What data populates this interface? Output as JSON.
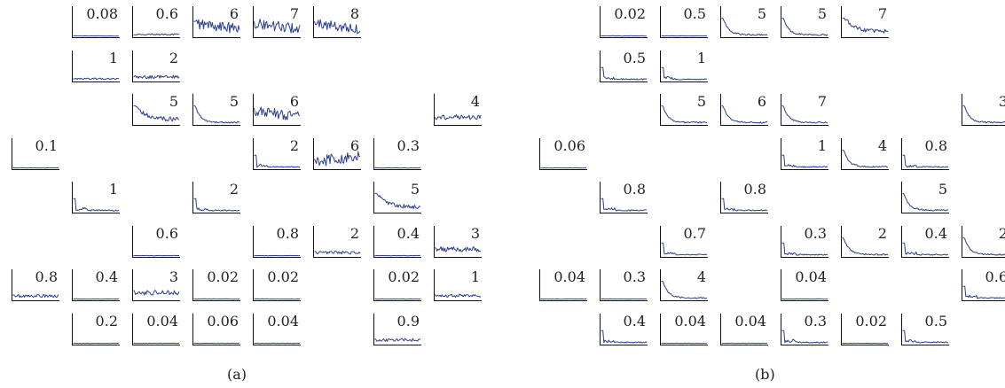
{
  "figure": {
    "caption_a": "(a)",
    "caption_b": "(b)",
    "line_color": "#2b3f8f"
  },
  "chart_data": [
    {
      "type": "line",
      "panel": "a",
      "caption": "(a)",
      "grid": "8 rows x 8 columns of small signal-profile plots, each labeled with a value",
      "cells": [
        {
          "row": 0,
          "col": 1,
          "label": "0.08",
          "shape": "flat"
        },
        {
          "row": 0,
          "col": 2,
          "label": "0.6",
          "shape": "low"
        },
        {
          "row": 0,
          "col": 3,
          "label": "6",
          "shape": "noisy-high"
        },
        {
          "row": 0,
          "col": 4,
          "label": "7",
          "shape": "noisy-high"
        },
        {
          "row": 0,
          "col": 5,
          "label": "8",
          "shape": "noisy-high"
        },
        {
          "row": 1,
          "col": 1,
          "label": "1",
          "shape": "low"
        },
        {
          "row": 1,
          "col": 2,
          "label": "2",
          "shape": "noisy-low"
        },
        {
          "row": 2,
          "col": 2,
          "label": "5",
          "shape": "decay-noisy"
        },
        {
          "row": 2,
          "col": 3,
          "label": "5",
          "shape": "decay"
        },
        {
          "row": 2,
          "col": 4,
          "label": "6",
          "shape": "noisy-high"
        },
        {
          "row": 2,
          "col": 7,
          "label": "4",
          "shape": "noisy-mid"
        },
        {
          "row": 3,
          "col": 0,
          "label": "0.1",
          "shape": "flat"
        },
        {
          "row": 3,
          "col": 4,
          "label": "2",
          "shape": "spike-low"
        },
        {
          "row": 3,
          "col": 5,
          "label": "6",
          "shape": "noisy-rising"
        },
        {
          "row": 3,
          "col": 6,
          "label": "0.3",
          "shape": "flat"
        },
        {
          "row": 4,
          "col": 1,
          "label": "1",
          "shape": "spike-low"
        },
        {
          "row": 4,
          "col": 3,
          "label": "2",
          "shape": "spike-low"
        },
        {
          "row": 4,
          "col": 6,
          "label": "5",
          "shape": "decay-noisy"
        },
        {
          "row": 5,
          "col": 2,
          "label": "0.6",
          "shape": "flat"
        },
        {
          "row": 5,
          "col": 4,
          "label": "0.8",
          "shape": "flat"
        },
        {
          "row": 5,
          "col": 5,
          "label": "2",
          "shape": "noisy-low"
        },
        {
          "row": 5,
          "col": 6,
          "label": "0.4",
          "shape": "flat"
        },
        {
          "row": 5,
          "col": 7,
          "label": "3",
          "shape": "noisy-mid"
        },
        {
          "row": 6,
          "col": 0,
          "label": "0.8",
          "shape": "noisy-low"
        },
        {
          "row": 6,
          "col": 1,
          "label": "0.4",
          "shape": "flat"
        },
        {
          "row": 6,
          "col": 2,
          "label": "3",
          "shape": "noisy-mid"
        },
        {
          "row": 6,
          "col": 3,
          "label": "0.02",
          "shape": "flat"
        },
        {
          "row": 6,
          "col": 4,
          "label": "0.02",
          "shape": "flat"
        },
        {
          "row": 6,
          "col": 6,
          "label": "0.02",
          "shape": "flat"
        },
        {
          "row": 6,
          "col": 7,
          "label": "1",
          "shape": "noisy-low"
        },
        {
          "row": 7,
          "col": 1,
          "label": "0.2",
          "shape": "flat"
        },
        {
          "row": 7,
          "col": 2,
          "label": "0.04",
          "shape": "flat"
        },
        {
          "row": 7,
          "col": 3,
          "label": "0.06",
          "shape": "flat"
        },
        {
          "row": 7,
          "col": 4,
          "label": "0.04",
          "shape": "flat"
        },
        {
          "row": 7,
          "col": 6,
          "label": "0.9",
          "shape": "noisy-low"
        }
      ]
    },
    {
      "type": "line",
      "panel": "b",
      "caption": "(b)",
      "grid": "8 rows x 8 columns of small signal-profile plots, each labeled with a value",
      "cells": [
        {
          "row": 0,
          "col": 1,
          "label": "0.02",
          "shape": "flat"
        },
        {
          "row": 0,
          "col": 2,
          "label": "0.5",
          "shape": "flat"
        },
        {
          "row": 0,
          "col": 3,
          "label": "5",
          "shape": "decay"
        },
        {
          "row": 0,
          "col": 4,
          "label": "5",
          "shape": "decay"
        },
        {
          "row": 0,
          "col": 5,
          "label": "7",
          "shape": "decay-noisy"
        },
        {
          "row": 1,
          "col": 1,
          "label": "0.5",
          "shape": "spike-low"
        },
        {
          "row": 1,
          "col": 2,
          "label": "1",
          "shape": "spike-low"
        },
        {
          "row": 2,
          "col": 2,
          "label": "5",
          "shape": "decay"
        },
        {
          "row": 2,
          "col": 3,
          "label": "6",
          "shape": "decay"
        },
        {
          "row": 2,
          "col": 4,
          "label": "7",
          "shape": "decay"
        },
        {
          "row": 2,
          "col": 7,
          "label": "3",
          "shape": "decay"
        },
        {
          "row": 3,
          "col": 0,
          "label": "0.06",
          "shape": "flat"
        },
        {
          "row": 3,
          "col": 4,
          "label": "1",
          "shape": "spike-low"
        },
        {
          "row": 3,
          "col": 5,
          "label": "4",
          "shape": "decay"
        },
        {
          "row": 3,
          "col": 6,
          "label": "0.8",
          "shape": "spike-low"
        },
        {
          "row": 4,
          "col": 1,
          "label": "0.8",
          "shape": "spike-low"
        },
        {
          "row": 4,
          "col": 3,
          "label": "0.8",
          "shape": "spike-low"
        },
        {
          "row": 4,
          "col": 6,
          "label": "5",
          "shape": "decay"
        },
        {
          "row": 5,
          "col": 2,
          "label": "0.7",
          "shape": "spike-low"
        },
        {
          "row": 5,
          "col": 4,
          "label": "0.3",
          "shape": "spike-low"
        },
        {
          "row": 5,
          "col": 5,
          "label": "2",
          "shape": "decay"
        },
        {
          "row": 5,
          "col": 6,
          "label": "0.4",
          "shape": "spike-low"
        },
        {
          "row": 5,
          "col": 7,
          "label": "2",
          "shape": "decay"
        },
        {
          "row": 6,
          "col": 0,
          "label": "0.04",
          "shape": "flat"
        },
        {
          "row": 6,
          "col": 1,
          "label": "0.3",
          "shape": "flat"
        },
        {
          "row": 6,
          "col": 2,
          "label": "4",
          "shape": "decay"
        },
        {
          "row": 6,
          "col": 4,
          "label": "0.04",
          "shape": "flat"
        },
        {
          "row": 6,
          "col": 7,
          "label": "0.6",
          "shape": "spike-low"
        },
        {
          "row": 7,
          "col": 1,
          "label": "0.4",
          "shape": "spike-low"
        },
        {
          "row": 7,
          "col": 2,
          "label": "0.04",
          "shape": "flat"
        },
        {
          "row": 7,
          "col": 3,
          "label": "0.04",
          "shape": "flat"
        },
        {
          "row": 7,
          "col": 4,
          "label": "0.3",
          "shape": "spike-low"
        },
        {
          "row": 7,
          "col": 5,
          "label": "0.02",
          "shape": "flat"
        },
        {
          "row": 7,
          "col": 6,
          "label": "0.5",
          "shape": "spike-low"
        }
      ]
    }
  ]
}
